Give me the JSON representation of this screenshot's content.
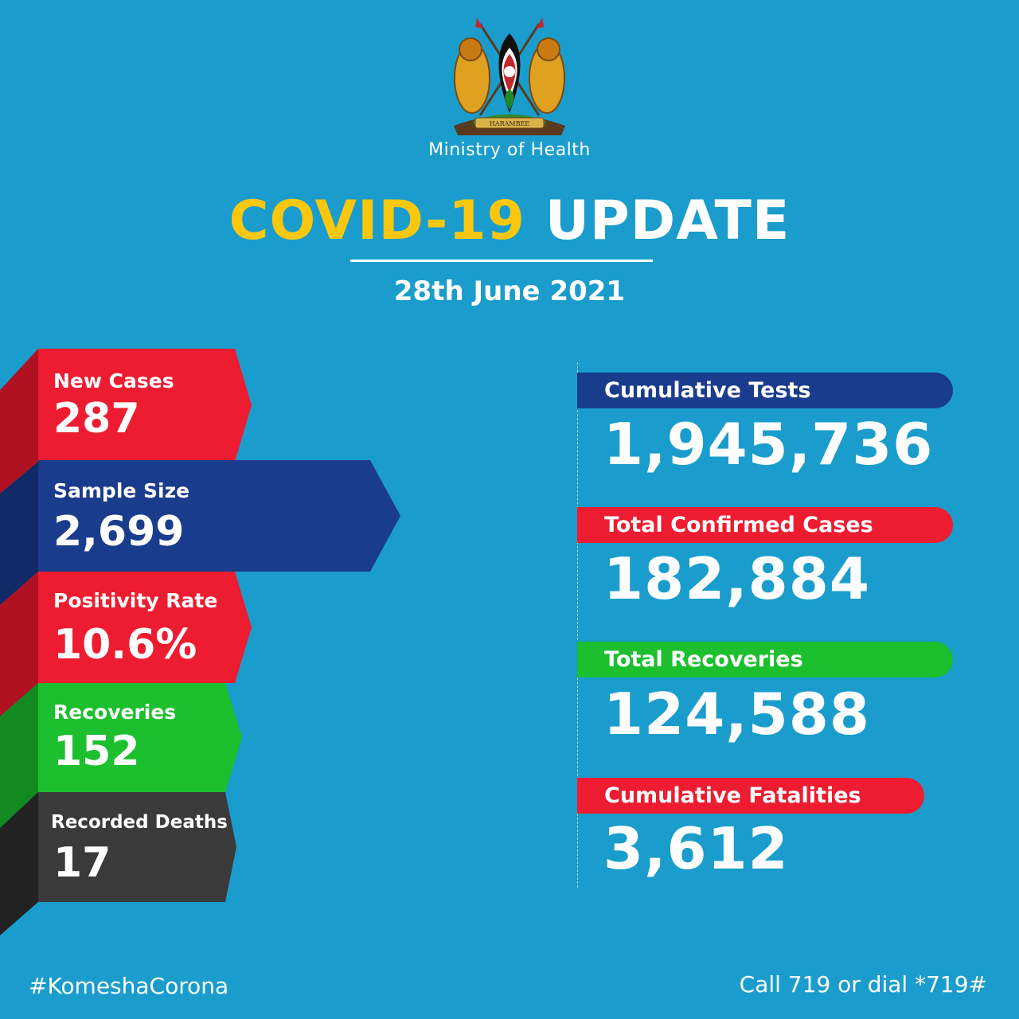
{
  "header": {
    "coat_of_arms_motto": "HARAMBEE",
    "ministry": "Ministry of Health",
    "title_part1": "COVID-19",
    "title_part2": "UPDATE",
    "date": "28th June 2021"
  },
  "daily_stats": [
    {
      "label": "New Cases",
      "value": "287",
      "color": "#ee1c30"
    },
    {
      "label": "Sample Size",
      "value": "2,699",
      "color": "#1a3c8c"
    },
    {
      "label": "Positivity Rate",
      "value": "10.6%",
      "color": "#ee1c30"
    },
    {
      "label": "Recoveries",
      "value": "152",
      "color": "#1cbf2e"
    },
    {
      "label": "Recorded Deaths",
      "value": "17",
      "color": "#3a3a3a"
    }
  ],
  "cumulative_stats": [
    {
      "label": "Cumulative Tests",
      "value": "1,945,736",
      "color": "#1a3c8c"
    },
    {
      "label": "Total Confirmed Cases",
      "value": "182,884",
      "color": "#ee1c30"
    },
    {
      "label": "Total Recoveries",
      "value": "124,588",
      "color": "#1cbf2e"
    },
    {
      "label": "Cumulative Fatalities",
      "value": "3,612",
      "color": "#ee1c30"
    }
  ],
  "footer": {
    "hashtag": "#KomeshaCorona",
    "hotline": "Call 719 or dial *719#"
  },
  "colors": {
    "background": "#1a9dcc",
    "accent_yellow": "#f9c80e"
  }
}
